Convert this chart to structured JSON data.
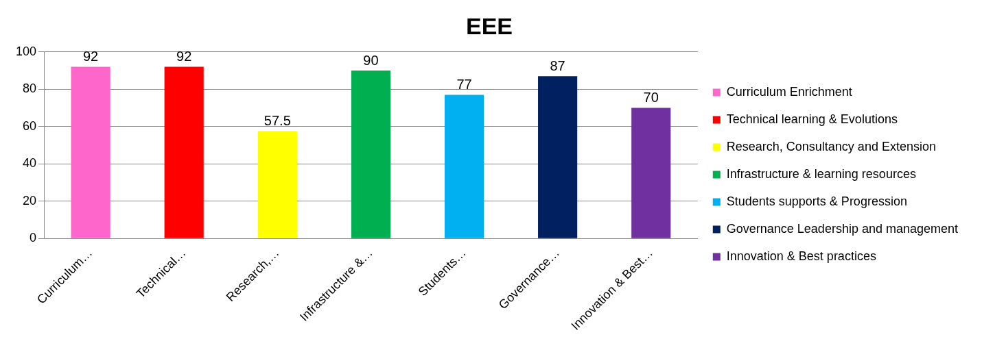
{
  "chart_data": {
    "type": "bar",
    "title": "EEE",
    "categories": [
      "Curriculum…",
      "Technical…",
      "Research,…",
      "Infrastructure &…",
      "Students…",
      "Governance…",
      "Innovation & Best…"
    ],
    "series": [
      {
        "name": "Curriculum Enrichment",
        "color": "#ff66cc",
        "values": [
          92,
          null,
          null,
          null,
          null,
          null,
          null
        ]
      },
      {
        "name": "Technical learning & Evolutions",
        "color": "#ff0000",
        "values": [
          null,
          92,
          null,
          null,
          null,
          null,
          null
        ]
      },
      {
        "name": "Research, Consultancy and Extension",
        "color": "#ffff00",
        "values": [
          null,
          null,
          57.5,
          null,
          null,
          null,
          null
        ]
      },
      {
        "name": "Infrastructure & learning resources",
        "color": "#00b050",
        "values": [
          null,
          null,
          null,
          90,
          null,
          null,
          null
        ]
      },
      {
        "name": "Students supports & Progression",
        "color": "#00b0f0",
        "values": [
          null,
          null,
          null,
          null,
          77,
          null,
          null
        ]
      },
      {
        "name": "Governance Leadership and management",
        "color": "#002060",
        "values": [
          null,
          null,
          null,
          null,
          null,
          87,
          null
        ]
      },
      {
        "name": "Innovation & Best practices",
        "color": "#7030a0",
        "values": [
          null,
          null,
          null,
          null,
          null,
          null,
          70
        ]
      }
    ],
    "ylim": [
      0,
      100
    ],
    "yticks": [
      0,
      20,
      40,
      60,
      80,
      100
    ],
    "grid": "y",
    "legend": "right",
    "data_labels": true
  }
}
